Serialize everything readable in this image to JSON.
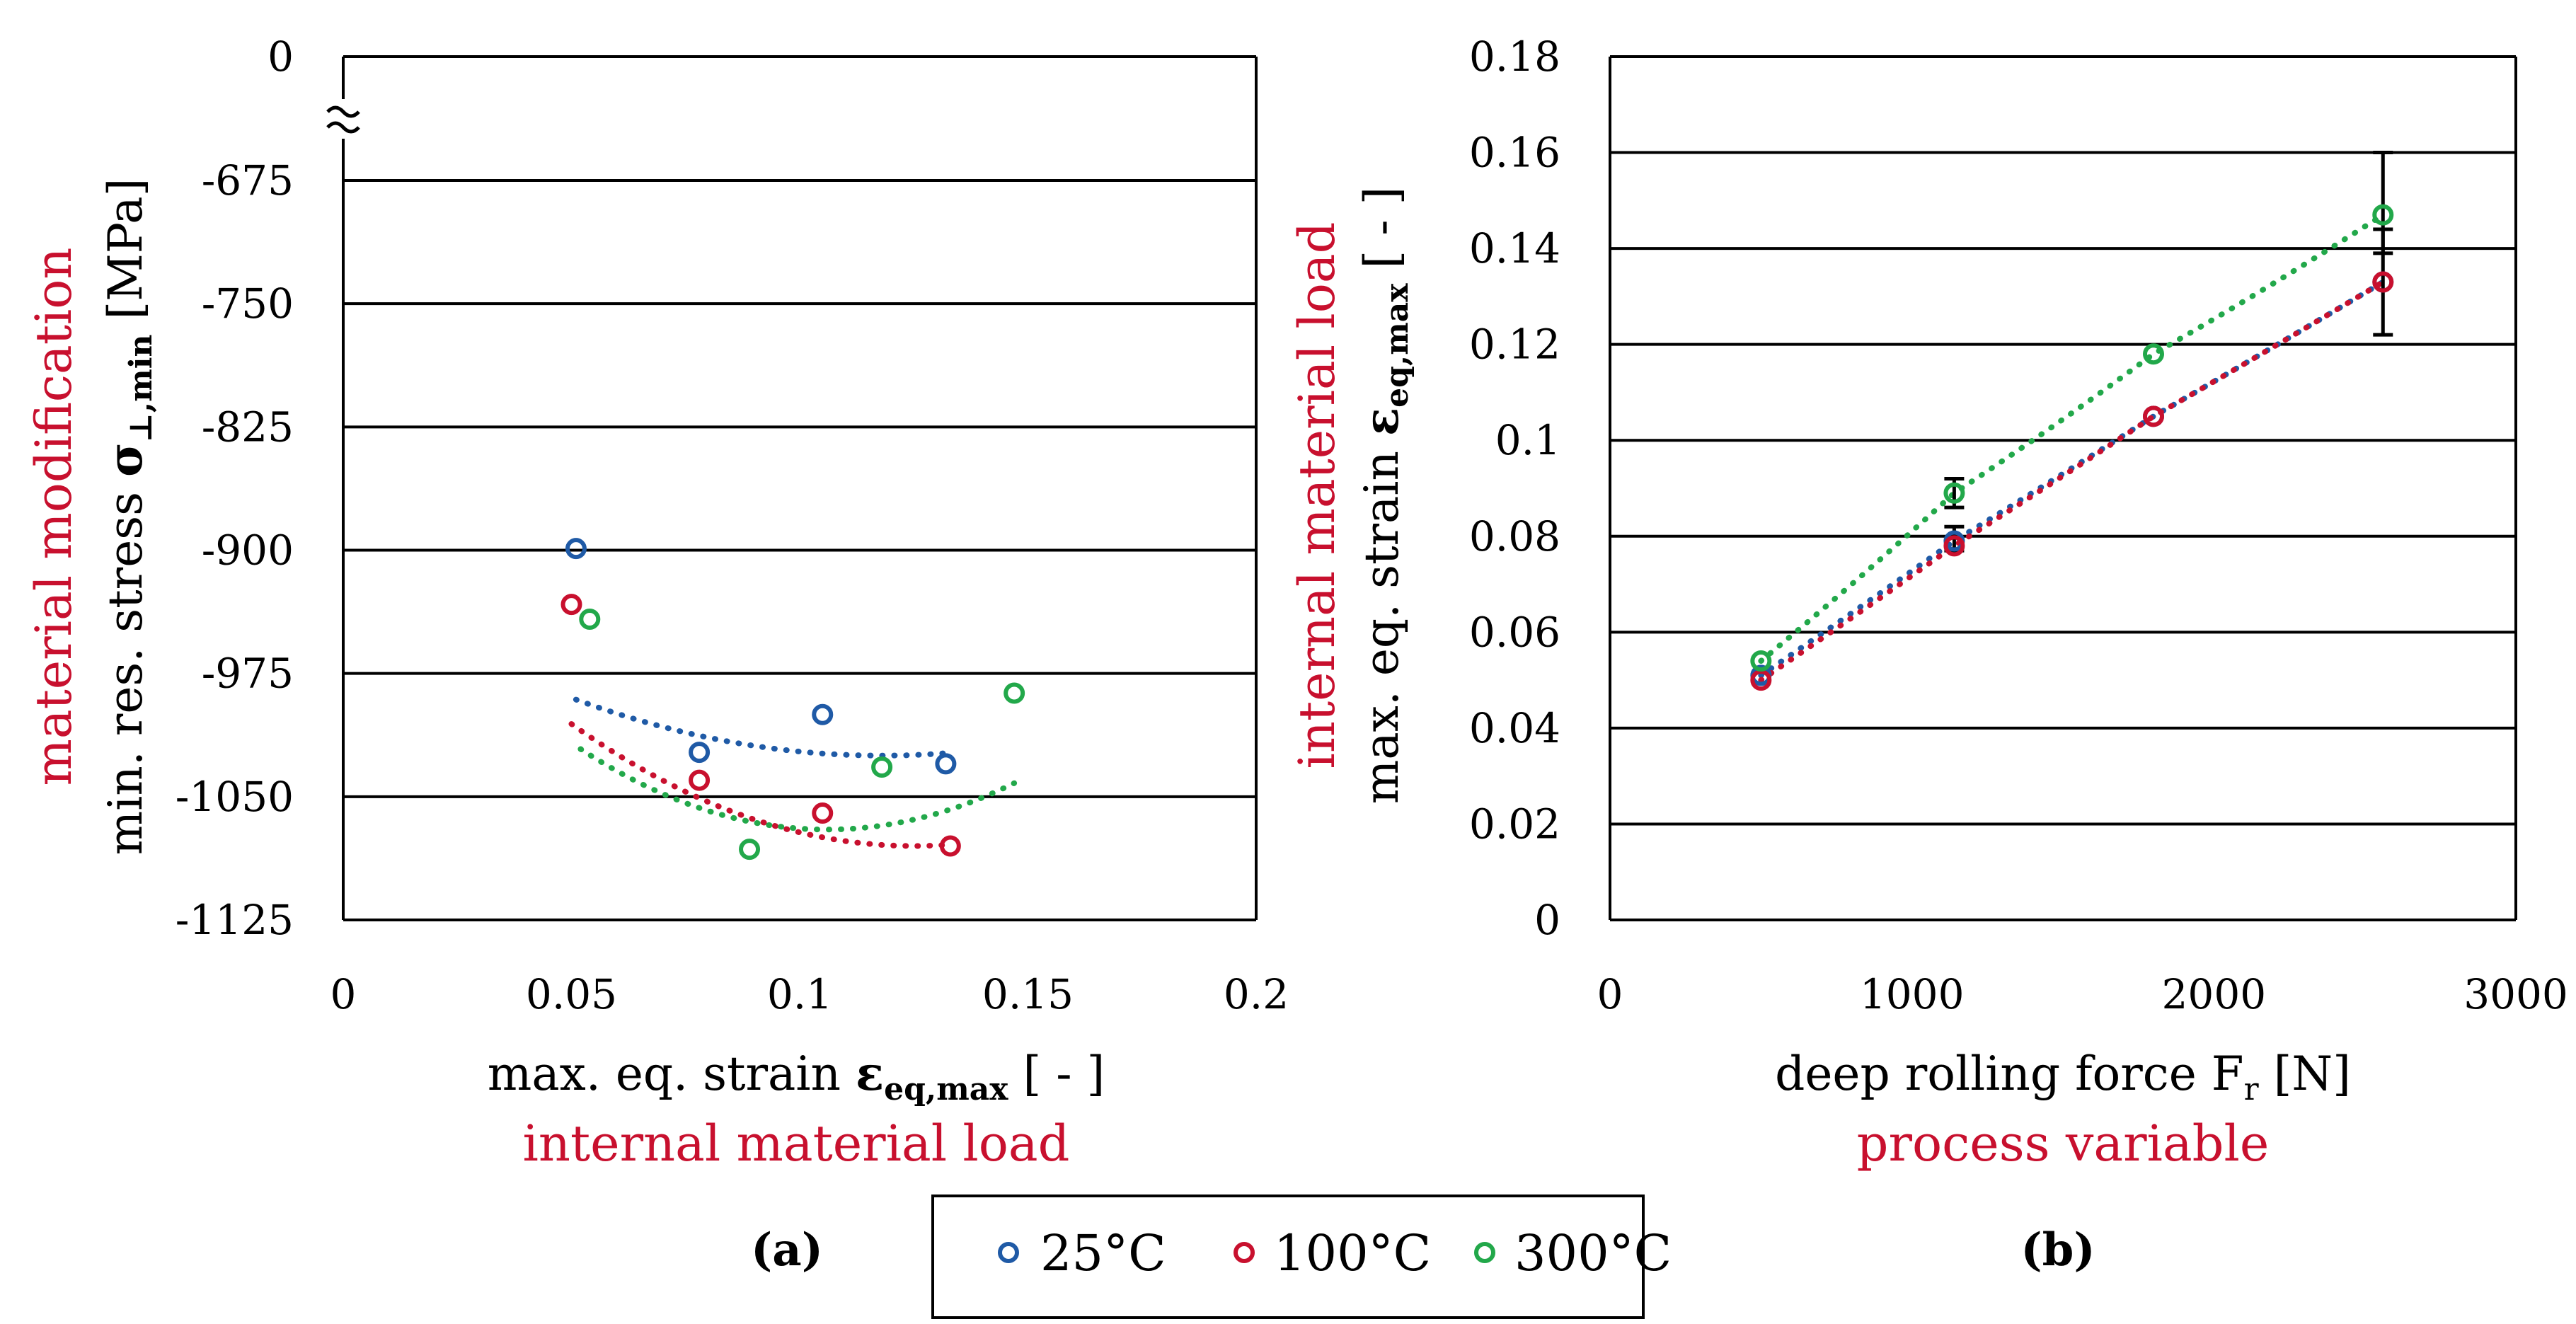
{
  "legend": [
    {
      "label": "25°C",
      "color": "#1f5aa6"
    },
    {
      "label": "100°C",
      "color": "#c8102e"
    },
    {
      "label": "300°C",
      "color": "#22a84a"
    }
  ],
  "chart_data": [
    {
      "type": "scatter",
      "panel_label": "(a)",
      "xlabel": {
        "main": "max. eq. strain ",
        "symbol": "ε",
        "sub": "eq,max",
        "tail": " [ - ]"
      },
      "xlabel_secondary": "internal material load",
      "ylabel": {
        "main": "min. res. stress ",
        "symbol": "σ",
        "sub": "⊥,min",
        "tail": " [MPa]"
      },
      "ylabel_secondary": "material modification",
      "xlim": [
        0,
        0.2
      ],
      "ylim": [
        -1125,
        0
      ],
      "axis_break": "between 0 and -675",
      "x_ticks": [
        0,
        0.05,
        0.1,
        0.15,
        0.2
      ],
      "x_tick_labels": [
        "0",
        "0.05",
        "0.1",
        "0.15",
        "0.2"
      ],
      "y_ticks": [
        0,
        -675,
        -750,
        -825,
        -900,
        -975,
        -1050,
        -1125
      ],
      "y_tick_labels": [
        "0",
        "-675",
        "-750",
        "-825",
        "-900",
        "-975",
        "-1050",
        "-1125"
      ],
      "grid": true,
      "trendline": "polynomial order 2 (dotted)",
      "series": [
        {
          "name": "25°C",
          "color": "#1f5aa6",
          "points": [
            [
              0.051,
              -899
            ],
            [
              0.078,
              -1023
            ],
            [
              0.105,
              -1000
            ],
            [
              0.132,
              -1030
            ]
          ],
          "trend": [
            0.002,
            7600,
            -0.6,
            -880.6
          ]
        },
        {
          "name": "100°C",
          "color": "#c8102e",
          "points": [
            [
              0.05,
              -933
            ],
            [
              0.078,
              -1040
            ],
            [
              0.105,
              -1060
            ],
            [
              0.133,
              -1080
            ]
          ],
          "trend": [
            0.002,
            13200,
            -0.6,
            -1080.0
          ]
        },
        {
          "name": "300°C",
          "color": "#22a84a",
          "points": [
            [
              0.054,
              -942
            ],
            [
              0.089,
              -1082
            ],
            [
              0.118,
              -1032
            ],
            [
              0.147,
              -987
            ]
          ],
          "trend": [
            0.002,
            16800,
            -0.6,
            -1076.7
          ]
        }
      ]
    },
    {
      "type": "scatter",
      "panel_label": "(b)",
      "xlabel": {
        "main": "deep rolling force F",
        "sub": "r",
        "tail": " [N]"
      },
      "xlabel_secondary": "process variable",
      "ylabel": {
        "main": "max. eq. strain ",
        "symbol": "ε",
        "sub": "eq,max",
        "tail": " [ - ]"
      },
      "ylabel_secondary": "internal material load",
      "xlim": [
        0,
        3000
      ],
      "ylim": [
        0,
        0.18
      ],
      "x_ticks": [
        0,
        1000,
        2000,
        3000
      ],
      "x_tick_labels": [
        "0",
        "1000",
        "2000",
        "3000"
      ],
      "y_ticks": [
        0,
        0.02,
        0.04,
        0.06,
        0.08,
        0.1,
        0.12,
        0.14,
        0.16,
        0.18
      ],
      "y_tick_labels": [
        "0",
        "0.02",
        "0.04",
        "0.06",
        "0.08",
        "0.1",
        "0.12",
        "0.14",
        "0.16",
        "0.18"
      ],
      "grid": true,
      "trendline": "polynomial (dotted)",
      "series": [
        {
          "name": "25°C",
          "color": "#1f5aa6",
          "points": [
            [
              500,
              0.051
            ],
            [
              1140,
              0.079
            ],
            [
              1800,
              0.105
            ],
            [
              2560,
              0.133
            ]
          ],
          "error_bars": [
            null,
            [
              0.077,
              0.082
            ],
            null,
            [
              0.122,
              0.144
            ]
          ]
        },
        {
          "name": "100°C",
          "color": "#c8102e",
          "points": [
            [
              500,
              0.05
            ],
            [
              1140,
              0.078
            ],
            [
              1800,
              0.105
            ],
            [
              2560,
              0.133
            ]
          ]
        },
        {
          "name": "300°C",
          "color": "#22a84a",
          "points": [
            [
              500,
              0.054
            ],
            [
              1140,
              0.089
            ],
            [
              1800,
              0.118
            ],
            [
              2560,
              0.147
            ]
          ],
          "error_bars": [
            null,
            [
              0.086,
              0.092
            ],
            null,
            [
              0.139,
              0.16
            ]
          ]
        }
      ]
    }
  ]
}
